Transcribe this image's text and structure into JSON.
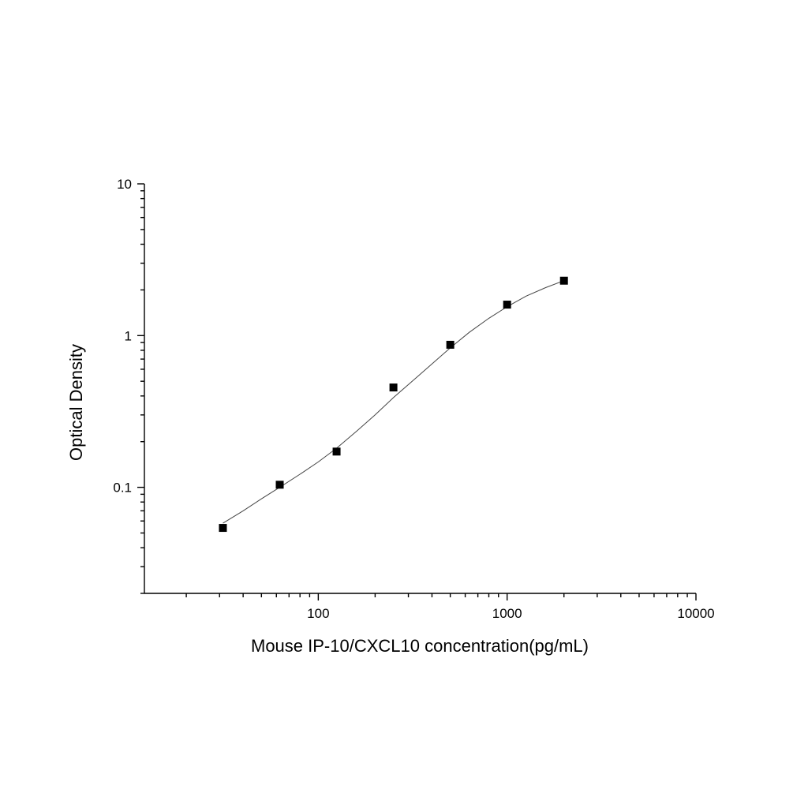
{
  "chart_data": {
    "type": "scatter",
    "title": "",
    "xlabel": "Mouse IP-10/CXCL10 concentration(pg/mL)",
    "ylabel": "Optical Density",
    "xscale": "log",
    "yscale": "log",
    "xlim": [
      12,
      10000
    ],
    "ylim": [
      0.02,
      10
    ],
    "x_tick_labels": [
      "100",
      "1000",
      "10000"
    ],
    "y_tick_labels": [
      "0.1",
      "1",
      "10"
    ],
    "grid": false,
    "legend": "none",
    "series": [
      {
        "marker": "square",
        "x": [
          31.25,
          62.5,
          125,
          250,
          500,
          1000,
          2000
        ],
        "y": [
          0.054,
          0.104,
          0.172,
          0.455,
          0.87,
          1.6,
          2.3
        ]
      }
    ],
    "fit_curve": {
      "type": "4PL",
      "x": [
        31.25,
        40,
        50,
        62.5,
        80,
        100,
        125,
        160,
        200,
        250,
        320,
        400,
        500,
        630,
        800,
        1000,
        1260,
        1600,
        2000
      ],
      "y": [
        0.058,
        0.07,
        0.084,
        0.1,
        0.122,
        0.147,
        0.181,
        0.235,
        0.3,
        0.39,
        0.51,
        0.65,
        0.83,
        1.05,
        1.3,
        1.55,
        1.82,
        2.07,
        2.3
      ]
    }
  }
}
